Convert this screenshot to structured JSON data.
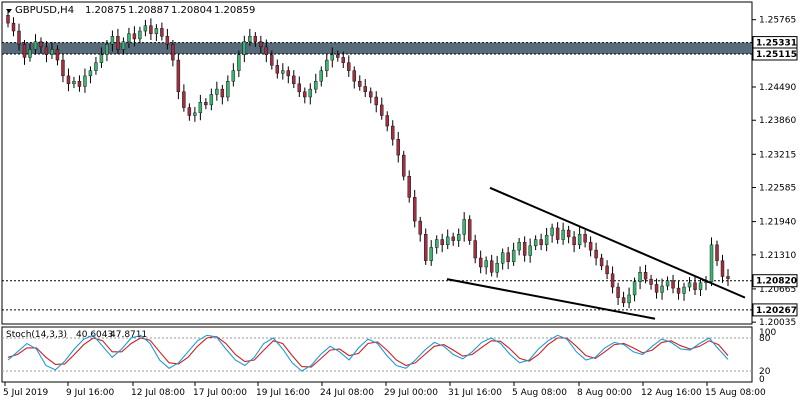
{
  "chart_data": {
    "type": "candlestick",
    "header": {
      "symbol": "GBPUSD,H4",
      "open": "1.20875",
      "high": "1.20887",
      "low": "1.20804",
      "close": "1.20859"
    },
    "ylim": [
      1.2,
      1.261
    ],
    "yticks": [
      "1.25765",
      "1.24490",
      "1.23860",
      "1.23215",
      "1.22585",
      "1.21940",
      "1.21310",
      "1.20665",
      "1.20035"
    ],
    "xticks": [
      "5 Jul 2019",
      "9 Jul 16:00",
      "12 Jul 08:00",
      "17 Jul 00:00",
      "19 Jul 16:00",
      "24 Jul 08:00",
      "29 Jul 00:00",
      "31 Jul 16:00",
      "5 Aug 08:00",
      "8 Aug 00:00",
      "12 Aug 16:00",
      "15 Aug 08:00"
    ],
    "resistance_zone": {
      "top": "1.25331",
      "bottom": "1.25115"
    },
    "levels": [
      "1.20820",
      "1.20267"
    ],
    "wedge_upper": [
      [
        1.2258,
        0
      ],
      [
        1.205,
        1
      ]
    ],
    "wedge_lower": [
      [
        1.2085,
        0
      ],
      [
        1.201,
        1
      ]
    ],
    "closes": [
      1.257,
      1.2555,
      1.253,
      1.2505,
      1.252,
      1.2535,
      1.2525,
      1.251,
      1.252,
      1.25,
      1.247,
      1.2455,
      1.246,
      1.245,
      1.247,
      1.248,
      1.2495,
      1.251,
      1.253,
      1.2545,
      1.252,
      1.2535,
      1.255,
      1.254,
      1.2555,
      1.2565,
      1.255,
      1.256,
      1.2545,
      1.253,
      1.25,
      1.244,
      1.241,
      1.2395,
      1.24,
      1.242,
      1.2415,
      1.2435,
      1.2445,
      1.243,
      1.246,
      1.248,
      1.251,
      1.2535,
      1.2545,
      1.2535,
      1.2525,
      1.251,
      1.249,
      1.2475,
      1.248,
      1.247,
      1.2455,
      1.244,
      1.243,
      1.2445,
      1.246,
      1.248,
      1.25,
      1.251,
      1.2505,
      1.2495,
      1.248,
      1.246,
      1.245,
      1.244,
      1.243,
      1.2415,
      1.2395,
      1.2375,
      1.235,
      1.232,
      1.228,
      1.224,
      1.2195,
      1.217,
      1.212,
      1.2145,
      1.216,
      1.215,
      1.2165,
      1.2158,
      1.217,
      1.2198,
      1.2158,
      1.2125,
      1.2108,
      1.212,
      1.2098,
      1.2115,
      1.2135,
      1.2118,
      1.214,
      1.2155,
      1.213,
      1.2148,
      1.216,
      1.215,
      1.2168,
      1.2182,
      1.216,
      1.2178,
      1.2165,
      1.215,
      1.217,
      1.2155,
      1.214,
      1.2125,
      1.211,
      1.2095,
      1.207,
      1.205,
      1.204,
      1.2055,
      1.208,
      1.2098,
      1.2085,
      1.2075,
      1.206,
      1.2072,
      1.2082,
      1.2068,
      1.2058,
      1.207,
      1.2078,
      1.2065,
      1.2078,
      1.208,
      1.215,
      1.212,
      1.209,
      1.2086
    ],
    "stoch": {
      "label": "Stoch(14,3,3)",
      "k_value": "40.6043",
      "d_value": "47.8711",
      "levels": [
        "100",
        "80",
        "20",
        "0"
      ],
      "k": [
        40,
        55,
        70,
        60,
        30,
        22,
        38,
        60,
        78,
        85,
        65,
        45,
        60,
        80,
        85,
        70,
        40,
        25,
        35,
        55,
        75,
        85,
        82,
        60,
        40,
        30,
        45,
        70,
        80,
        60,
        35,
        20,
        30,
        50,
        65,
        55,
        40,
        62,
        78,
        70,
        48,
        30,
        25,
        40,
        58,
        72,
        65,
        50,
        42,
        55,
        72,
        80,
        70,
        50,
        35,
        40,
        60,
        75,
        85,
        78,
        55,
        40,
        45,
        62,
        72,
        68,
        55,
        50,
        65,
        78,
        72,
        60,
        58,
        70,
        80,
        60,
        41
      ],
      "d": [
        45,
        50,
        62,
        62,
        45,
        32,
        33,
        50,
        68,
        80,
        75,
        55,
        55,
        70,
        80,
        76,
        55,
        35,
        33,
        45,
        65,
        80,
        83,
        70,
        50,
        37,
        40,
        58,
        75,
        70,
        48,
        28,
        27,
        42,
        58,
        60,
        48,
        52,
        70,
        73,
        58,
        40,
        30,
        35,
        50,
        65,
        68,
        58,
        47,
        50,
        63,
        75,
        74,
        60,
        43,
        38,
        50,
        68,
        80,
        80,
        65,
        48,
        43,
        55,
        68,
        70,
        62,
        53,
        58,
        72,
        75,
        66,
        60,
        65,
        75,
        68,
        48
      ]
    }
  },
  "colors": {
    "bull": "#3cb371",
    "bear": "#a0303f",
    "stoch_k": "#1e9ad6",
    "stoch_d": "#d02020",
    "zone": "#586b7b"
  }
}
